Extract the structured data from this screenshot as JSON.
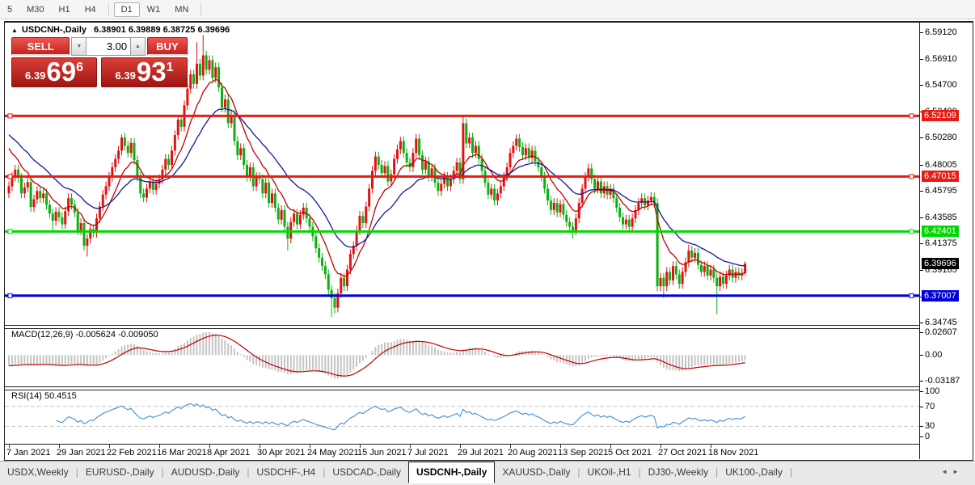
{
  "toolbar": {
    "timeframes": [
      "5",
      "M30",
      "H1",
      "H4",
      "D1",
      "W1",
      "MN"
    ],
    "selected": "D1"
  },
  "chart": {
    "title": {
      "symbol_label": "USDCNH-,Daily",
      "ohlc": "6.38901 6.39889 6.38725 6.39696",
      "collapse_icon": "▲"
    },
    "trade_widget": {
      "sell_label": "SELL",
      "buy_label": "BUY",
      "volume": "3.00",
      "sell_price": {
        "small": "6.39",
        "big": "69",
        "sup": "6"
      },
      "buy_price": {
        "small": "6.39",
        "big": "93",
        "sup": "1"
      },
      "spin_down_icon": "▼",
      "spin_up_icon": "▲"
    }
  },
  "chart_data": {
    "type": "candlestick",
    "symbol": "USDCNH-",
    "timeframe": "Daily",
    "ohlc_current": {
      "open": 6.38901,
      "high": 6.39889,
      "low": 6.38725,
      "close": 6.39696
    },
    "price_range": {
      "top": 6.5995,
      "bottom": 6.3475
    },
    "price_axis_ticks": [
      "6.59120",
      "6.56910",
      "6.54700",
      "6.52490",
      "6.50280",
      "6.48005",
      "6.45795",
      "6.43585",
      "6.41375",
      "6.39165",
      "6.36955",
      "6.34745"
    ],
    "current_price_label": "6.39696",
    "hlines": [
      {
        "price": 6.52109,
        "label": "6.52109",
        "color": "#e51d14"
      },
      {
        "price": 6.47015,
        "label": "6.47015",
        "color": "#e51d14"
      },
      {
        "price": 6.42401,
        "label": "6.42401",
        "color": "#00d900"
      },
      {
        "price": 6.37007,
        "label": "6.37007",
        "color": "#0000dc"
      }
    ],
    "x_axis_dates": [
      "7 Jan 2021",
      "29 Jan 2021",
      "22 Feb 2021",
      "16 Mar 2021",
      "8 Apr 2021",
      "30 Apr 2021",
      "24 May 2021",
      "15 Jun 2021",
      "7 Jul 2021",
      "29 Jul 2021",
      "20 Aug 2021",
      "13 Sep 2021",
      "5 Oct 2021",
      "27 Oct 2021",
      "18 Nov 2021"
    ],
    "bars_per_label": 16,
    "first_open": 6.456,
    "default_wick": 0.004,
    "up_color": "#e31212",
    "down_color": "#0faf12",
    "closes": [
      6.462,
      6.47,
      6.476,
      6.469,
      6.456,
      6.461,
      6.4655,
      6.4445,
      6.451,
      6.458,
      6.452,
      6.456,
      6.4465,
      6.439,
      6.433,
      6.4405,
      6.436,
      6.43,
      6.441,
      6.452,
      6.4465,
      6.44,
      6.425,
      6.431,
      6.412,
      6.418,
      6.426,
      6.423,
      6.435,
      6.445,
      6.455,
      6.462,
      6.47,
      6.478,
      6.485,
      6.492,
      6.503,
      6.496,
      6.49,
      6.4985,
      6.484,
      6.47,
      6.456,
      6.4525,
      6.46,
      6.466,
      6.459,
      6.464,
      6.468,
      6.476,
      6.485,
      6.48,
      6.492,
      6.505,
      6.518,
      6.512,
      6.53,
      6.544,
      6.556,
      6.548,
      6.565,
      6.555,
      6.572,
      6.56,
      6.568,
      6.553,
      6.562,
      6.545,
      6.528,
      6.535,
      6.515,
      6.522,
      6.5,
      6.488,
      6.494,
      6.48,
      6.47,
      6.478,
      6.462,
      6.47,
      6.468,
      6.456,
      6.465,
      6.448,
      6.456,
      6.444,
      6.434,
      6.442,
      6.428,
      6.418,
      6.432,
      6.439,
      6.43,
      6.438,
      6.444,
      6.435,
      6.428,
      6.42,
      6.41,
      6.402,
      6.395,
      6.388,
      6.375,
      6.368,
      6.36,
      6.372,
      6.385,
      6.378,
      6.392,
      6.405,
      6.412,
      6.425,
      6.437,
      6.431,
      6.445,
      6.46,
      6.475,
      6.487,
      6.48,
      6.473,
      6.479,
      6.466,
      6.472,
      6.485,
      6.493,
      6.5,
      6.49,
      6.482,
      6.478,
      6.49,
      6.502,
      6.488,
      6.476,
      6.483,
      6.47,
      6.477,
      6.465,
      6.458,
      6.464,
      6.47,
      6.462,
      6.468,
      6.475,
      6.482,
      6.468,
      6.515,
      6.498,
      6.503,
      6.49,
      6.496,
      6.485,
      6.475,
      6.465,
      6.455,
      6.46,
      6.45,
      6.456,
      6.462,
      6.47,
      6.478,
      6.49,
      6.496,
      6.502,
      6.495,
      6.488,
      6.494,
      6.486,
      6.492,
      6.483,
      6.478,
      6.47,
      6.46,
      6.45,
      6.442,
      6.448,
      6.44,
      6.447,
      6.438,
      6.432,
      6.428,
      6.425,
      6.435,
      6.448,
      6.46,
      6.47,
      6.477,
      6.468,
      6.46,
      6.466,
      6.456,
      6.462,
      6.455,
      6.46,
      6.452,
      6.444,
      6.436,
      6.43,
      6.434,
      6.428,
      6.435,
      6.442,
      6.448,
      6.452,
      6.446,
      6.45,
      6.453,
      6.448,
      6.378,
      6.385,
      6.378,
      6.39,
      6.383,
      6.395,
      6.388,
      6.38,
      6.39,
      6.398,
      6.408,
      6.402,
      6.406,
      6.396,
      6.39,
      6.395,
      6.387,
      6.392,
      6.385,
      6.378,
      6.386,
      6.38,
      6.387,
      6.392,
      6.385,
      6.39,
      6.387,
      6.389,
      6.39696
    ],
    "wick_highs": {
      "36": 6.5055,
      "60": 6.583,
      "62": 6.589,
      "125": 6.5035,
      "130": 6.506,
      "145": 6.5209,
      "162": 6.5055,
      "217": 6.413,
      "235": 6.39889
    },
    "wick_lows": {
      "14": 6.425,
      "25": 6.403,
      "89": 6.408,
      "103": 6.352,
      "104": 6.355,
      "180": 6.418,
      "207": 6.3735,
      "209": 6.368,
      "226": 6.3545,
      "235": 6.38725
    },
    "moving_averages": [
      {
        "name": "fast-ma",
        "period": 10,
        "seed": 6.501,
        "color": "#c40000"
      },
      {
        "name": "slow-ma",
        "period": 25,
        "seed": 6.509,
        "color": "#17179b"
      }
    ],
    "macd": {
      "label": "MACD(12,26,9) -0.005624 -0.009050",
      "params": "12,26,9",
      "fast_seed": 6.474,
      "slow_seed": 6.486,
      "axis_ticks": [
        "0.02607",
        "0.00",
        "-0.03187"
      ],
      "scale_top": 0.0295,
      "scale_bottom": -0.0335,
      "bar_color": "#c4c4c4",
      "signal_color": "#c40000"
    },
    "rsi": {
      "label": "RSI(14) 50.4515",
      "period": 14,
      "axis_ticks": [
        "100",
        "70",
        "30",
        "0"
      ],
      "levels": [
        70,
        30
      ],
      "line_color": "#3d8fd4",
      "level_color": "#c6c6c6"
    }
  },
  "tabs": {
    "items": [
      "USDX,Weekly",
      "EURUSD-,Daily",
      "AUDUSD-,Daily",
      "USDCHF-,H4",
      "USDCAD-,Daily",
      "USDCNH-,Daily",
      "XAUUSD-,Daily",
      "UKOil-,H1",
      "DJ30-,Weekly",
      "UK100-,Daily"
    ],
    "active": "USDCNH-,Daily",
    "scroll_left_icon": "◄",
    "scroll_right_icon": "►"
  }
}
